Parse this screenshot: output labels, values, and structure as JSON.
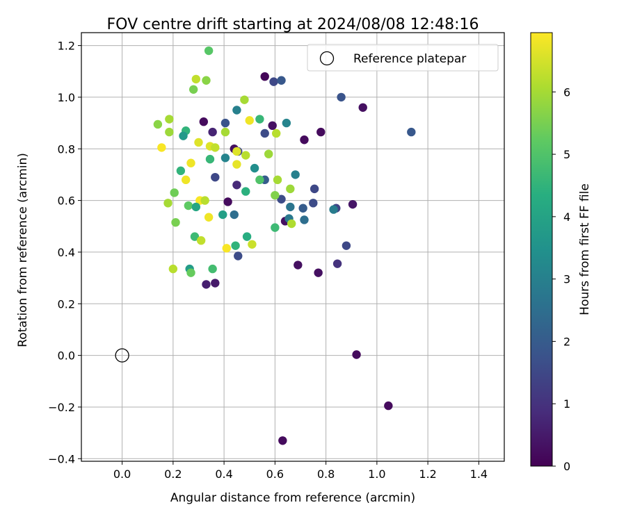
{
  "chart_data": {
    "type": "scatter",
    "title": "FOV centre drift starting at 2024/08/08 12:48:16",
    "xlabel": "Angular distance from reference (arcmin)",
    "ylabel": "Rotation from reference (arcmin)",
    "xlim": [
      -0.16,
      1.5
    ],
    "ylim": [
      -0.41,
      1.25
    ],
    "xticks": [
      "0.0",
      "0.2",
      "0.4",
      "0.6",
      "0.8",
      "1.0",
      "1.2",
      "1.4"
    ],
    "yticks": [
      "−0.4",
      "−0.2",
      "0.0",
      "0.2",
      "0.4",
      "0.6",
      "0.8",
      "1.0",
      "1.2"
    ],
    "grid": true,
    "legend": {
      "placement": "top-right",
      "entries": [
        "Reference platepar"
      ]
    },
    "reference_point": {
      "x": 0.0,
      "y": 0.0,
      "marker": "open-circle",
      "color": "#000000"
    },
    "colorbar": {
      "label": "Hours from first FF file",
      "range": [
        0,
        6.95
      ],
      "ticks": [
        "0",
        "1",
        "2",
        "3",
        "4",
        "5",
        "6"
      ],
      "colormap": "viridis"
    },
    "points": [
      {
        "x": 0.56,
        "y": 1.08,
        "h": 0.1
      },
      {
        "x": 0.595,
        "y": 1.06,
        "h": 1.5
      },
      {
        "x": 0.625,
        "y": 1.065,
        "h": 1.9
      },
      {
        "x": 0.86,
        "y": 1.0,
        "h": 1.8
      },
      {
        "x": 0.945,
        "y": 0.96,
        "h": 0.3
      },
      {
        "x": 1.135,
        "y": 0.865,
        "h": 1.9
      },
      {
        "x": 0.59,
        "y": 0.89,
        "h": 0.3
      },
      {
        "x": 0.645,
        "y": 0.9,
        "h": 3.1
      },
      {
        "x": 0.56,
        "y": 0.86,
        "h": 1.6
      },
      {
        "x": 0.715,
        "y": 0.835,
        "h": 0.2
      },
      {
        "x": 0.78,
        "y": 0.865,
        "h": 0.2
      },
      {
        "x": 0.68,
        "y": 0.7,
        "h": 3.0
      },
      {
        "x": 0.755,
        "y": 0.645,
        "h": 1.5
      },
      {
        "x": 0.56,
        "y": 0.68,
        "h": 2.0
      },
      {
        "x": 0.71,
        "y": 0.57,
        "h": 2.0
      },
      {
        "x": 0.66,
        "y": 0.575,
        "h": 2.7
      },
      {
        "x": 0.625,
        "y": 0.605,
        "h": 1.6
      },
      {
        "x": 0.75,
        "y": 0.59,
        "h": 1.6
      },
      {
        "x": 0.715,
        "y": 0.525,
        "h": 2.5
      },
      {
        "x": 0.84,
        "y": 0.57,
        "h": 1.4
      },
      {
        "x": 0.83,
        "y": 0.565,
        "h": 2.9
      },
      {
        "x": 0.905,
        "y": 0.585,
        "h": 0.4
      },
      {
        "x": 0.64,
        "y": 0.52,
        "h": 0.3
      },
      {
        "x": 0.655,
        "y": 0.53,
        "h": 2.8
      },
      {
        "x": 0.88,
        "y": 0.425,
        "h": 1.5
      },
      {
        "x": 0.845,
        "y": 0.355,
        "h": 1.0
      },
      {
        "x": 0.69,
        "y": 0.35,
        "h": 0.3
      },
      {
        "x": 0.77,
        "y": 0.32,
        "h": 0.3
      },
      {
        "x": 0.92,
        "y": 0.003,
        "h": 0.2
      },
      {
        "x": 1.045,
        "y": -0.195,
        "h": 0.2
      },
      {
        "x": 0.63,
        "y": -0.33,
        "h": 0.2
      },
      {
        "x": 0.34,
        "y": 1.18,
        "h": 5.1
      },
      {
        "x": 0.29,
        "y": 1.07,
        "h": 6.3
      },
      {
        "x": 0.33,
        "y": 1.065,
        "h": 5.7
      },
      {
        "x": 0.28,
        "y": 1.03,
        "h": 5.5
      },
      {
        "x": 0.48,
        "y": 0.99,
        "h": 6.0
      },
      {
        "x": 0.45,
        "y": 0.95,
        "h": 3.0
      },
      {
        "x": 0.54,
        "y": 0.915,
        "h": 4.6
      },
      {
        "x": 0.5,
        "y": 0.91,
        "h": 6.8
      },
      {
        "x": 0.32,
        "y": 0.905,
        "h": 0.2
      },
      {
        "x": 0.405,
        "y": 0.9,
        "h": 1.8
      },
      {
        "x": 0.185,
        "y": 0.915,
        "h": 6.0
      },
      {
        "x": 0.14,
        "y": 0.895,
        "h": 5.7
      },
      {
        "x": 0.185,
        "y": 0.865,
        "h": 5.9
      },
      {
        "x": 0.25,
        "y": 0.87,
        "h": 4.5
      },
      {
        "x": 0.355,
        "y": 0.865,
        "h": 0.7
      },
      {
        "x": 0.405,
        "y": 0.865,
        "h": 6.0
      },
      {
        "x": 0.605,
        "y": 0.86,
        "h": 6.2
      },
      {
        "x": 0.24,
        "y": 0.85,
        "h": 3.7
      },
      {
        "x": 0.3,
        "y": 0.825,
        "h": 6.6
      },
      {
        "x": 0.345,
        "y": 0.81,
        "h": 6.6
      },
      {
        "x": 0.155,
        "y": 0.805,
        "h": 6.9
      },
      {
        "x": 0.365,
        "y": 0.805,
        "h": 6.3
      },
      {
        "x": 0.44,
        "y": 0.8,
        "h": 0.3
      },
      {
        "x": 0.455,
        "y": 0.79,
        "h": 1.5
      },
      {
        "x": 0.45,
        "y": 0.79,
        "h": 6.6
      },
      {
        "x": 0.485,
        "y": 0.775,
        "h": 6.2
      },
      {
        "x": 0.575,
        "y": 0.78,
        "h": 5.9
      },
      {
        "x": 0.345,
        "y": 0.76,
        "h": 4.6
      },
      {
        "x": 0.405,
        "y": 0.765,
        "h": 3.1
      },
      {
        "x": 0.27,
        "y": 0.745,
        "h": 6.8
      },
      {
        "x": 0.45,
        "y": 0.74,
        "h": 6.7
      },
      {
        "x": 0.52,
        "y": 0.725,
        "h": 3.4
      },
      {
        "x": 0.23,
        "y": 0.715,
        "h": 4.5
      },
      {
        "x": 0.365,
        "y": 0.69,
        "h": 1.5
      },
      {
        "x": 0.25,
        "y": 0.68,
        "h": 6.8
      },
      {
        "x": 0.54,
        "y": 0.68,
        "h": 5.0
      },
      {
        "x": 0.61,
        "y": 0.68,
        "h": 6.0
      },
      {
        "x": 0.45,
        "y": 0.66,
        "h": 0.8
      },
      {
        "x": 0.66,
        "y": 0.645,
        "h": 5.9
      },
      {
        "x": 0.485,
        "y": 0.635,
        "h": 4.4
      },
      {
        "x": 0.205,
        "y": 0.63,
        "h": 5.4
      },
      {
        "x": 0.6,
        "y": 0.62,
        "h": 5.6
      },
      {
        "x": 0.305,
        "y": 0.6,
        "h": 6.9
      },
      {
        "x": 0.325,
        "y": 0.6,
        "h": 6.2
      },
      {
        "x": 0.18,
        "y": 0.59,
        "h": 6.0
      },
      {
        "x": 0.415,
        "y": 0.595,
        "h": 0.2
      },
      {
        "x": 0.26,
        "y": 0.58,
        "h": 5.2
      },
      {
        "x": 0.29,
        "y": 0.575,
        "h": 4.1
      },
      {
        "x": 0.395,
        "y": 0.545,
        "h": 3.9
      },
      {
        "x": 0.44,
        "y": 0.545,
        "h": 2.5
      },
      {
        "x": 0.34,
        "y": 0.535,
        "h": 6.8
      },
      {
        "x": 0.21,
        "y": 0.515,
        "h": 5.5
      },
      {
        "x": 0.665,
        "y": 0.51,
        "h": 6.1
      },
      {
        "x": 0.6,
        "y": 0.495,
        "h": 4.7
      },
      {
        "x": 0.285,
        "y": 0.46,
        "h": 4.7
      },
      {
        "x": 0.49,
        "y": 0.46,
        "h": 4.3
      },
      {
        "x": 0.31,
        "y": 0.445,
        "h": 6.3
      },
      {
        "x": 0.51,
        "y": 0.43,
        "h": 6.4
      },
      {
        "x": 0.445,
        "y": 0.425,
        "h": 4.5
      },
      {
        "x": 0.41,
        "y": 0.415,
        "h": 6.9
      },
      {
        "x": 0.455,
        "y": 0.385,
        "h": 1.6
      },
      {
        "x": 0.2,
        "y": 0.335,
        "h": 6.2
      },
      {
        "x": 0.265,
        "y": 0.335,
        "h": 3.8
      },
      {
        "x": 0.355,
        "y": 0.335,
        "h": 4.8
      },
      {
        "x": 0.27,
        "y": 0.32,
        "h": 5.3
      },
      {
        "x": 0.33,
        "y": 0.275,
        "h": 0.6
      },
      {
        "x": 0.365,
        "y": 0.28,
        "h": 0.5
      }
    ]
  }
}
